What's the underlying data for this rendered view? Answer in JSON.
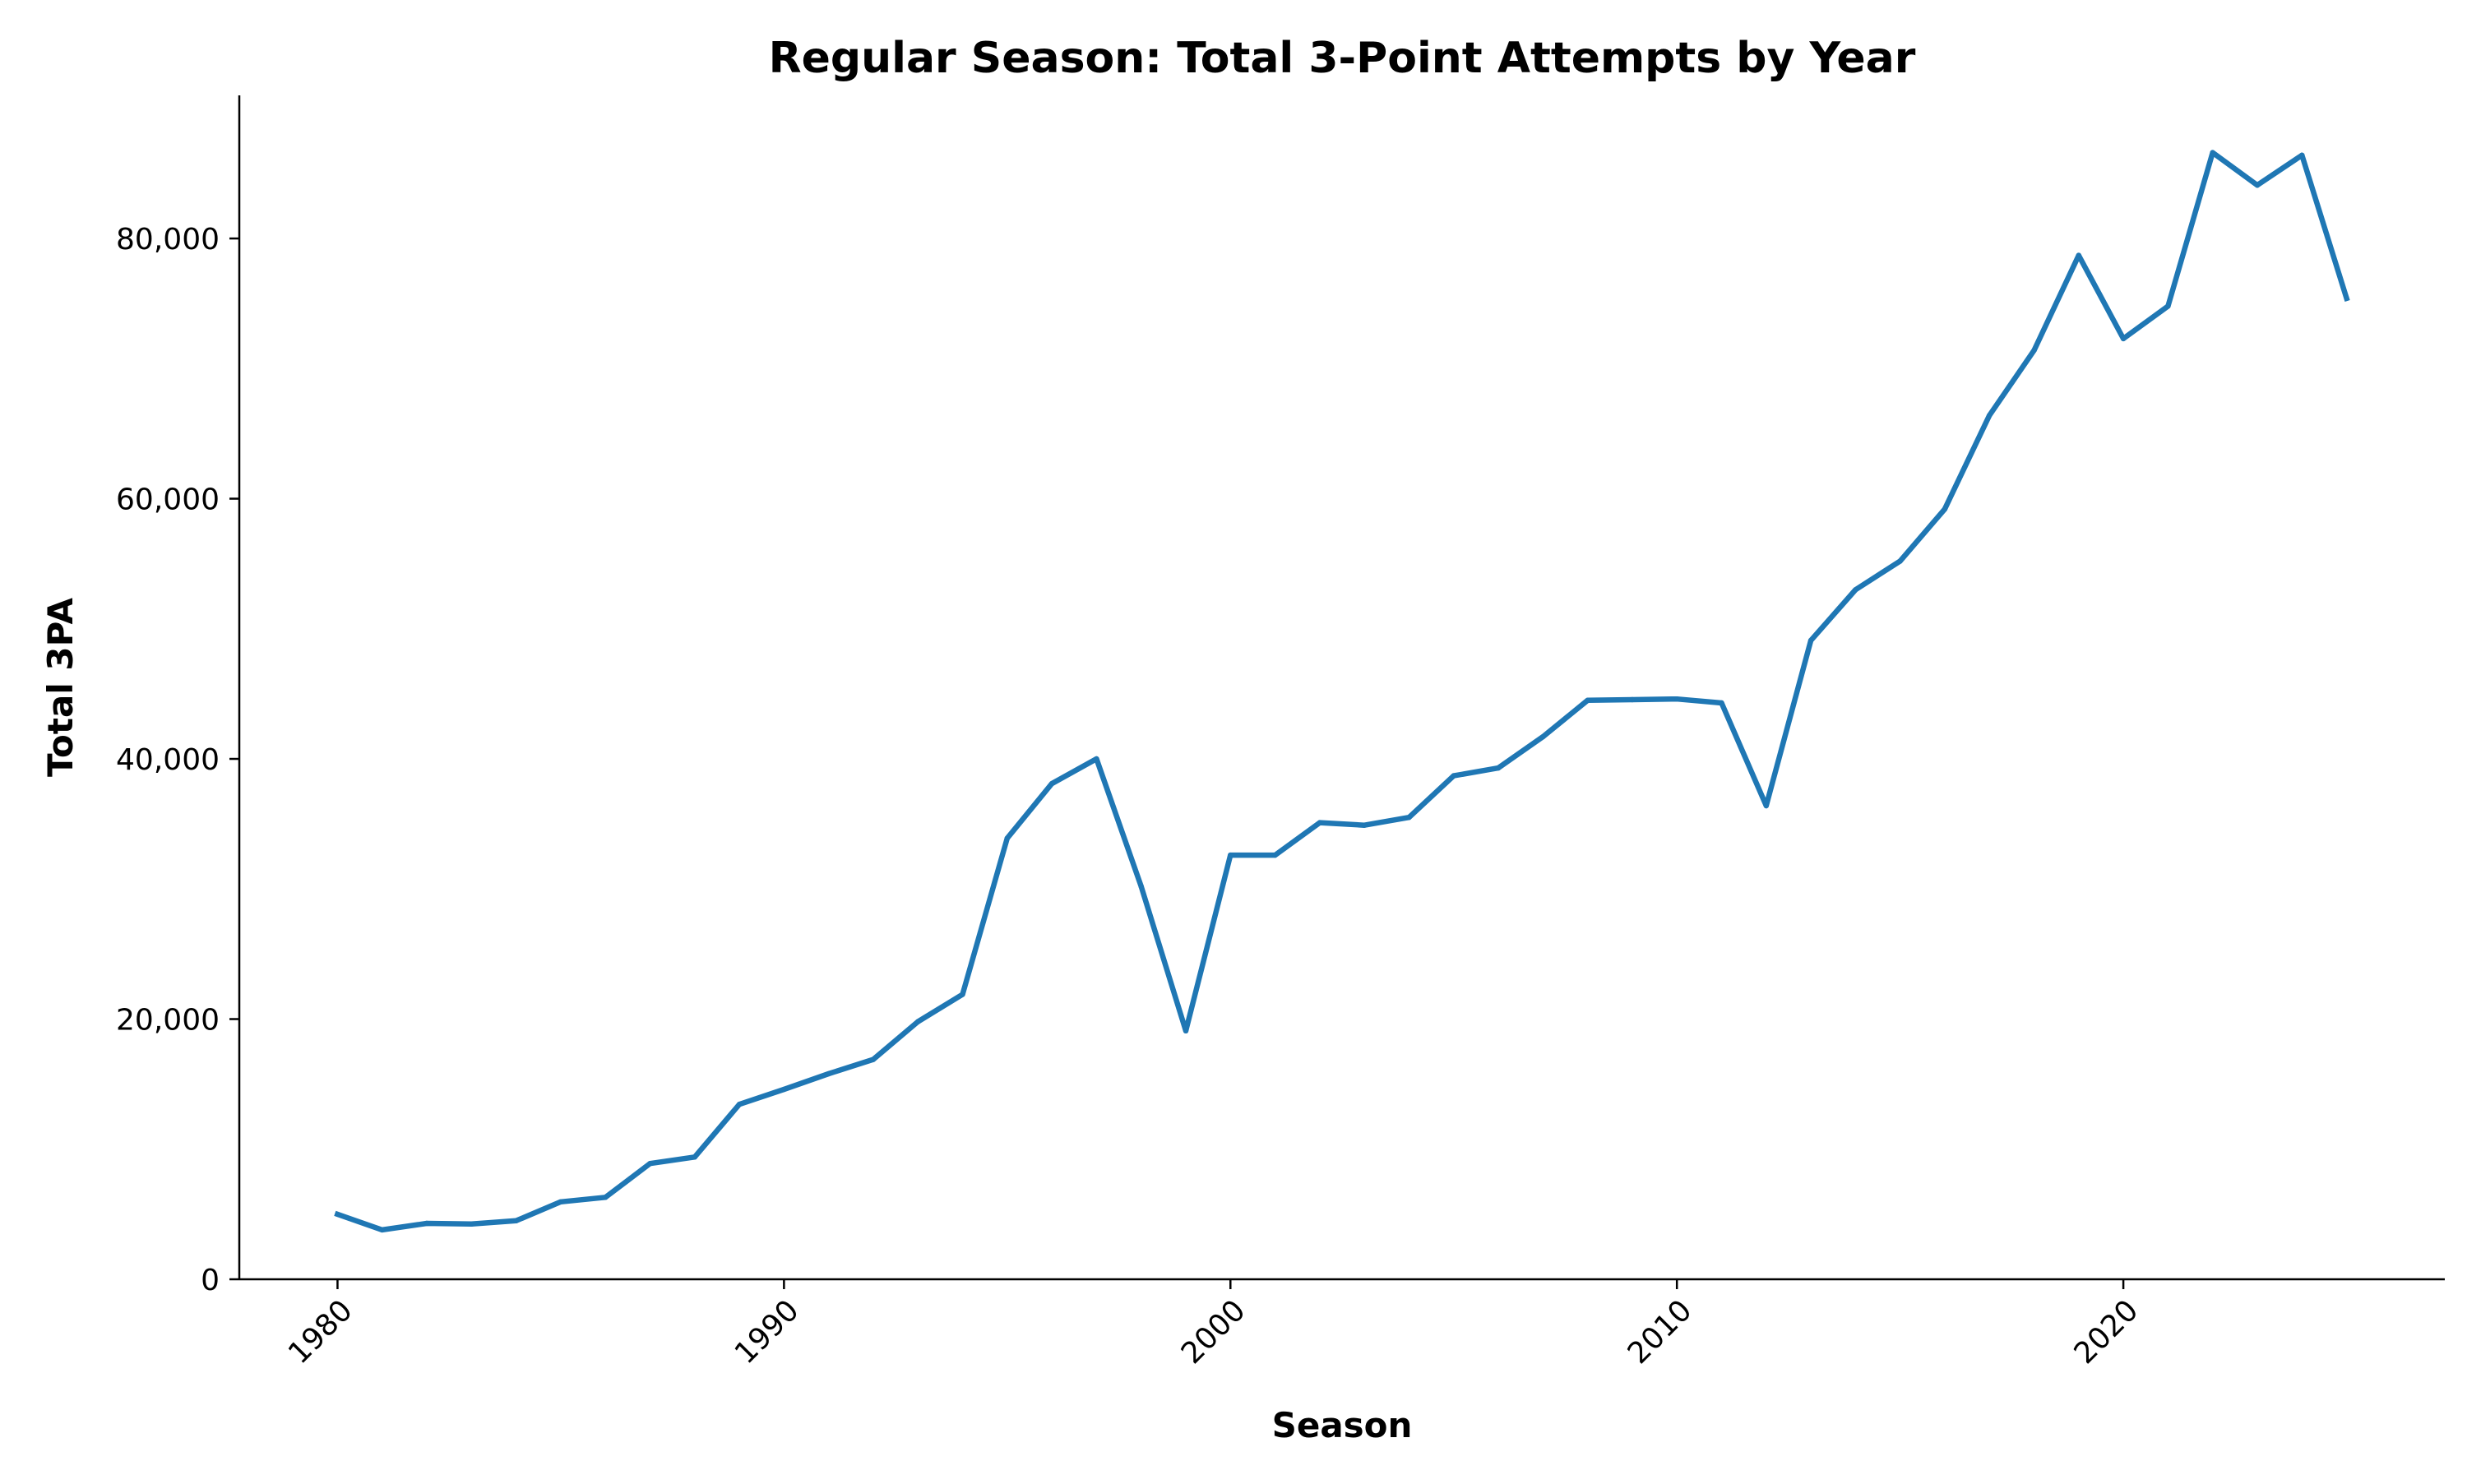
{
  "chart_data": {
    "type": "line",
    "title": "Regular Season: Total 3-Point Attempts by Year",
    "xlabel": "Season",
    "ylabel": "Total 3PA",
    "xlim": [
      1977.8,
      2027.2
    ],
    "ylim": [
      0,
      91000
    ],
    "x_ticks": [
      1980,
      1990,
      2000,
      2010,
      2020
    ],
    "x_tick_labels": [
      "1980",
      "1990",
      "2000",
      "2010",
      "2020"
    ],
    "y_ticks": [
      0,
      20000,
      40000,
      60000,
      80000
    ],
    "y_tick_labels": [
      "0",
      "20,000",
      "40,000",
      "60,000",
      "80,000"
    ],
    "grid": false,
    "color": "#1f77b4",
    "series": [
      {
        "x": [
          1980,
          1981,
          1982,
          1983,
          1984,
          1985,
          1986,
          1987,
          1988,
          1989,
          1990,
          1991,
          1992,
          1993,
          1994,
          1995,
          1996,
          1997,
          1998,
          1999,
          2000,
          2001,
          2002,
          2003,
          2004,
          2005,
          2006,
          2007,
          2008,
          2009,
          2010,
          2011,
          2012,
          2013,
          2014,
          2015,
          2016,
          2017,
          2018,
          2019,
          2020,
          2021,
          2022,
          2023,
          2024,
          2025
        ],
        "values": [
          5000,
          3800,
          4300,
          4250,
          4500,
          5950,
          6300,
          8900,
          9400,
          13450,
          14600,
          15800,
          16900,
          19800,
          21900,
          33900,
          38100,
          40000,
          30200,
          19100,
          32600,
          32600,
          35100,
          34900,
          35500,
          38700,
          39300,
          41700,
          44500,
          44550,
          44600,
          44300,
          36400,
          49100,
          53000,
          55200,
          59200,
          66400,
          71400,
          78700,
          72300,
          74800,
          86600,
          84100,
          86400,
          75400
        ]
      }
    ]
  }
}
